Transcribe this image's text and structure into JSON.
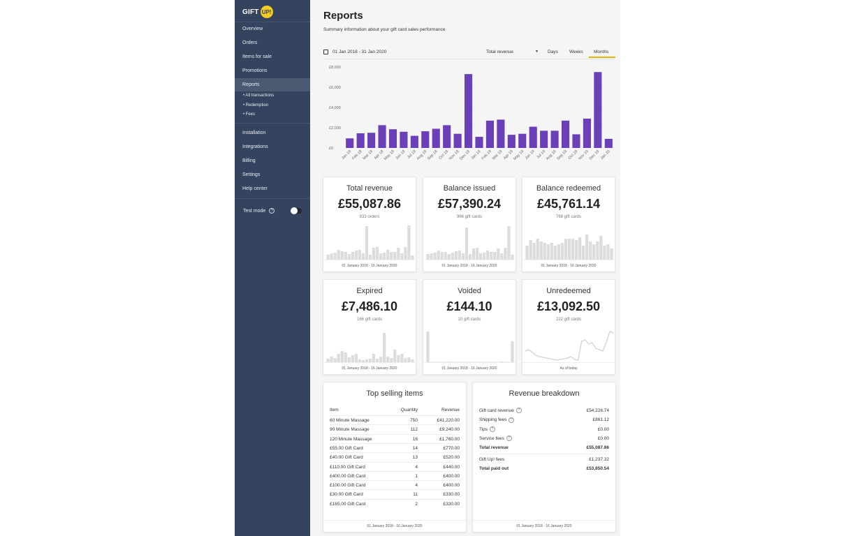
{
  "logo": {
    "text": "GIFT",
    "badge": "UP!"
  },
  "sidebar": {
    "items": [
      {
        "label": "Overview"
      },
      {
        "label": "Orders"
      },
      {
        "label": "Items for sale"
      },
      {
        "label": "Promotions"
      },
      {
        "label": "Reports",
        "active": true
      }
    ],
    "sub_items": [
      {
        "label": "• All transactions"
      },
      {
        "label": "• Redemption"
      },
      {
        "label": "• Fees"
      }
    ],
    "items2": [
      {
        "label": "Installation"
      },
      {
        "label": "Integrations"
      },
      {
        "label": "Billing"
      },
      {
        "label": "Settings"
      },
      {
        "label": "Help center"
      }
    ],
    "test_mode": {
      "label": "Test mode",
      "help": "?",
      "enabled": false
    }
  },
  "header": {
    "title": "Reports",
    "subtitle": "Summary information about your gift card sales performance"
  },
  "toolbar": {
    "date_range": "01 Jan 2018 - 31 Jan 2020",
    "metric": "Total revenue",
    "tabs": [
      "Days",
      "Weeks",
      "Months"
    ],
    "active_tab": "Months"
  },
  "chart_data": {
    "type": "bar",
    "categories": [
      "Jan 18",
      "Feb 18",
      "Mar 18",
      "Apr 18",
      "May 18",
      "Jun 18",
      "Jul 18",
      "Aug 18",
      "Sep 18",
      "Oct 18",
      "Nov 18",
      "Dec 18",
      "Jan 19",
      "Feb 19",
      "Mar 19",
      "Apr 19",
      "May 19",
      "Jun 19",
      "Jul 19",
      "Aug 19",
      "Sep 19",
      "Oct 19",
      "Nov 19",
      "Dec 19",
      "Jan 20"
    ],
    "values": [
      950,
      1450,
      1500,
      2250,
      1850,
      1600,
      1200,
      1650,
      1900,
      2250,
      1400,
      7300,
      1100,
      2700,
      2800,
      1300,
      1400,
      2100,
      1700,
      1700,
      2700,
      1350,
      2900,
      7500,
      900
    ],
    "yticks": [
      "£0",
      "£2,000",
      "£4,000",
      "£6,000",
      "£8,000"
    ],
    "ylim": [
      0,
      8000
    ],
    "color": "#6a3fb8"
  },
  "stats": [
    {
      "title": "Total revenue",
      "value": "£55,087.86",
      "sub": "933 orders",
      "foot": "01 January 2018 - 16 January 2020",
      "spark_type": "bar",
      "spark": [
        7,
        9,
        10,
        14,
        12,
        11,
        8,
        11,
        13,
        14,
        9,
        48,
        7,
        17,
        18,
        9,
        10,
        14,
        11,
        11,
        17,
        9,
        18,
        49,
        6
      ]
    },
    {
      "title": "Balance issued",
      "value": "£57,390.24",
      "sub": "966 gift cards",
      "foot": "01 January 2018 - 16 January 2020",
      "spark_type": "bar",
      "spark": [
        8,
        9,
        10,
        13,
        11,
        11,
        8,
        10,
        12,
        13,
        9,
        46,
        8,
        16,
        17,
        9,
        10,
        13,
        11,
        11,
        16,
        9,
        17,
        48,
        7
      ]
    },
    {
      "title": "Balance redeemed",
      "value": "£45,761.14",
      "sub": "768 gift cards",
      "foot": "01 January 2018 - 16 January 2020",
      "spark_type": "bar",
      "spark": [
        20,
        28,
        24,
        30,
        26,
        24,
        22,
        24,
        20,
        22,
        24,
        30,
        30,
        30,
        28,
        32,
        20,
        36,
        26,
        22,
        26,
        34,
        20,
        22,
        16
      ]
    },
    {
      "title": "Expired",
      "value": "£7,486.10",
      "sub": "166 gift cards",
      "foot": "01 January 2018 - 16 January 2020",
      "spark_type": "bar",
      "spark": [
        5,
        8,
        6,
        12,
        16,
        14,
        7,
        10,
        12,
        4,
        3,
        4,
        5,
        12,
        5,
        8,
        42,
        8,
        6,
        18,
        10,
        12,
        6,
        7,
        4
      ]
    },
    {
      "title": "Voided",
      "value": "£144.10",
      "sub": "10 gift cards",
      "foot": "01 January 2018 - 16 January 2020",
      "spark_type": "bar",
      "spark": [
        44,
        0,
        0,
        0,
        0,
        0,
        1,
        0,
        0,
        0,
        0,
        0,
        0,
        0,
        0,
        0,
        0,
        0,
        0,
        0,
        0,
        1,
        0,
        0,
        30
      ]
    },
    {
      "title": "Unredeemed",
      "value": "£13,092.50",
      "sub": "222 gift cards",
      "foot": "As of today",
      "spark_type": "line",
      "spark": [
        16,
        18,
        14,
        10,
        8,
        7,
        6,
        5,
        4,
        3,
        4,
        5,
        6,
        8,
        4,
        3,
        30,
        32,
        26,
        28,
        20,
        18,
        16,
        28,
        44,
        42
      ]
    }
  ],
  "top_items": {
    "title": "Top selling items",
    "headers": [
      "Item",
      "Quantity",
      "Revenue"
    ],
    "rows": [
      [
        "60 Minute Massage",
        "750",
        "£41,220.00"
      ],
      [
        "90 Minute Massage",
        "112",
        "£9,240.00"
      ],
      [
        "120 Minute Massage",
        "16",
        "£1,760.00"
      ],
      [
        "£55.00 Gift Card",
        "14",
        "£770.00"
      ],
      [
        "£40.00 Gift Card",
        "13",
        "£520.00"
      ],
      [
        "£110.00 Gift Card",
        "4",
        "£440.00"
      ],
      [
        "£400.00 Gift Card",
        "1",
        "£400.00"
      ],
      [
        "£100.00 Gift Card",
        "4",
        "£400.00"
      ],
      [
        "£30.00 Gift Card",
        "11",
        "£330.00"
      ],
      [
        "£165.00 Gift Card",
        "2",
        "£330.00"
      ]
    ],
    "foot": "01 January 2018 - 16 January 2020"
  },
  "breakdown": {
    "title": "Revenue breakdown",
    "rows": [
      {
        "label": "Gift card revenue",
        "value": "£54,226.74",
        "help": true
      },
      {
        "label": "Shipping fees",
        "value": "£861.12",
        "help": true
      },
      {
        "label": "Tips",
        "value": "£0.00",
        "help": true
      },
      {
        "label": "Service fees",
        "value": "£0.00",
        "help": true
      },
      {
        "label": "Total revenue",
        "value": "£55,087.86",
        "bold": true
      }
    ],
    "rows2": [
      {
        "label": "Gift Up! fees",
        "value": "£1,237.32"
      },
      {
        "label": "Total paid out",
        "value": "£53,850.54",
        "bold": true
      }
    ],
    "foot": "01 January 2018 - 16 January 2020"
  }
}
